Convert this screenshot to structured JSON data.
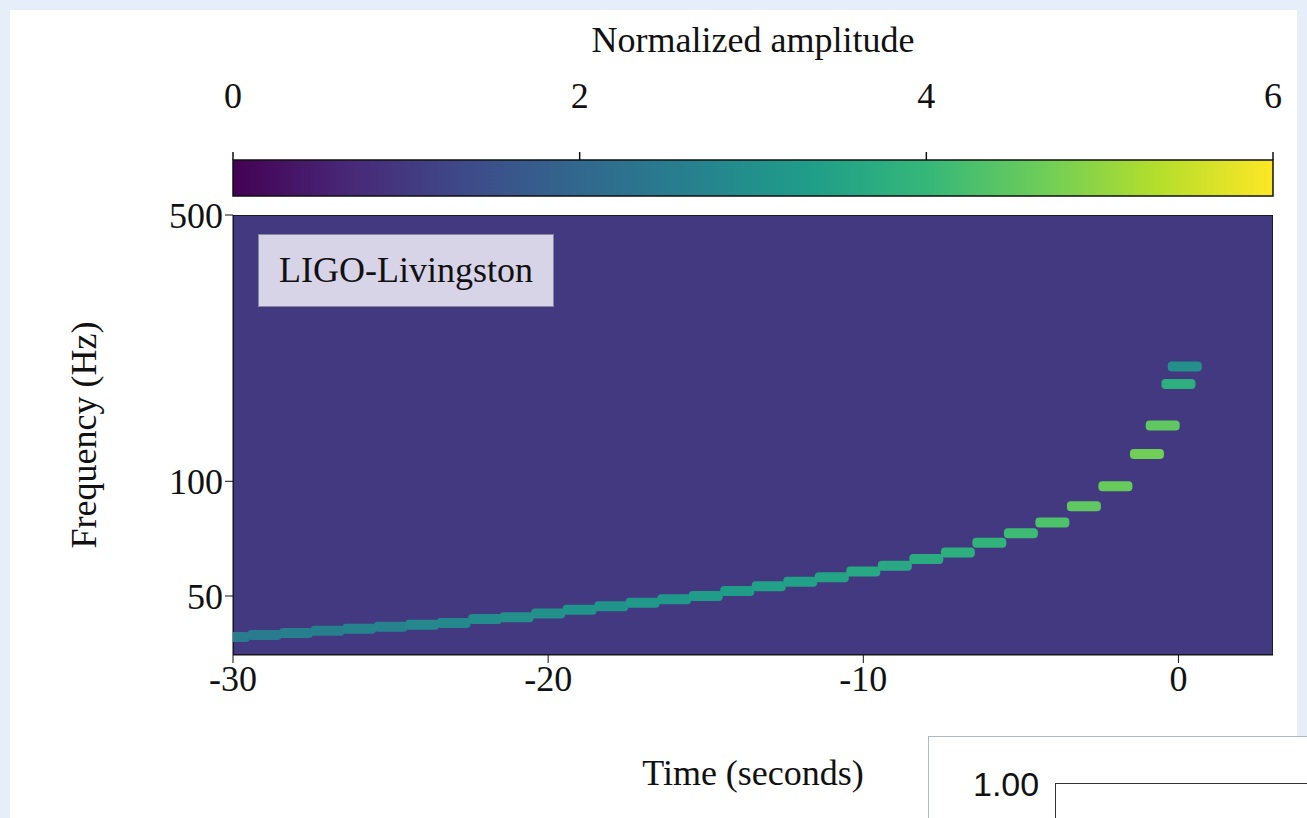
{
  "chart_data": {
    "type": "heatmap",
    "label": "LIGO-Livingston",
    "x_label": "Time (seconds)",
    "y_label": "Frequency (Hz)",
    "xlim": [
      -30,
      3
    ],
    "xticks": [
      -30,
      -20,
      -10,
      0
    ],
    "ylim": [
      35,
      500
    ],
    "yticks": [
      50,
      100,
      500
    ],
    "log": "y",
    "grid": false,
    "colorbar_label": "Normalized amplitude",
    "colorbar_range": [
      0,
      6
    ],
    "colorbar_ticks": [
      0,
      2,
      4,
      6
    ],
    "background_amplitude": 1,
    "x": [
      -30,
      -29,
      -28,
      -27,
      -26,
      -25,
      -24,
      -23,
      -22,
      -21,
      -20,
      -19,
      -18,
      -17,
      -16,
      -15,
      -14,
      -13,
      -12,
      -11,
      -10,
      -9,
      -8,
      -7,
      -6,
      -5,
      -4,
      -3,
      -2,
      -1,
      -0.5,
      0,
      0.2
    ],
    "y": [
      39,
      39.5,
      40,
      40.5,
      41,
      41.5,
      42,
      42.5,
      43.5,
      44,
      45,
      46,
      47,
      48,
      49,
      50,
      51.5,
      53,
      54.5,
      56,
      58,
      60,
      62.5,
      65,
      69,
      73,
      78,
      86,
      97,
      118,
      140,
      180,
      200
    ],
    "amplitude": [
      2.5,
      2.5,
      2.6,
      2.6,
      2.7,
      2.7,
      2.8,
      2.8,
      2.9,
      3.0,
      3.0,
      3.1,
      3.1,
      3.2,
      3.2,
      3.3,
      3.3,
      3.4,
      3.4,
      3.5,
      3.6,
      3.6,
      3.7,
      3.8,
      3.9,
      4.1,
      4.3,
      4.5,
      4.6,
      4.7,
      4.5,
      3.8,
      3.0
    ]
  },
  "inset_fragment": {
    "tick_label": "1.00"
  }
}
